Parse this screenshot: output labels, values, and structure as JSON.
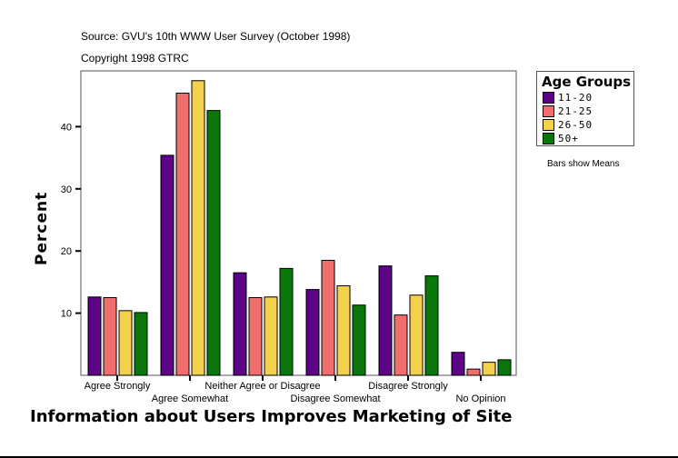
{
  "chart_data": {
    "type": "bar",
    "source": "Source: GVU's 10th WWW User Survey (October 1998)",
    "copyright": "Copyright 1998 GTRC",
    "xlabel": "Information about Users Improves Marketing of Site",
    "ylabel": "Percent",
    "note": "Bars show Means",
    "legend_title": "Age Groups",
    "legend_position": "right",
    "ylim": [
      0,
      50
    ],
    "yticks": [
      10,
      20,
      30,
      40
    ],
    "grid": false,
    "categories": [
      "Agree Strongly",
      "Agree Somewhat",
      "Neither Agree or Disagree",
      "Disagree Somewhat",
      "Disagree Strongly",
      "No Opinion"
    ],
    "series": [
      {
        "name": "11-20",
        "color": "#5c0088",
        "values": [
          12.6,
          35.4,
          16.5,
          13.8,
          17.6,
          3.7
        ]
      },
      {
        "name": "21-25",
        "color": "#f06e6e",
        "values": [
          12.5,
          45.4,
          12.5,
          18.5,
          9.7,
          1.0
        ]
      },
      {
        "name": "26-50",
        "color": "#f5d04a",
        "values": [
          10.4,
          47.4,
          12.6,
          14.4,
          12.9,
          2.1
        ]
      },
      {
        "name": "50+",
        "color": "#087808",
        "values": [
          10.1,
          42.6,
          17.2,
          11.3,
          16.0,
          2.5
        ]
      }
    ]
  }
}
